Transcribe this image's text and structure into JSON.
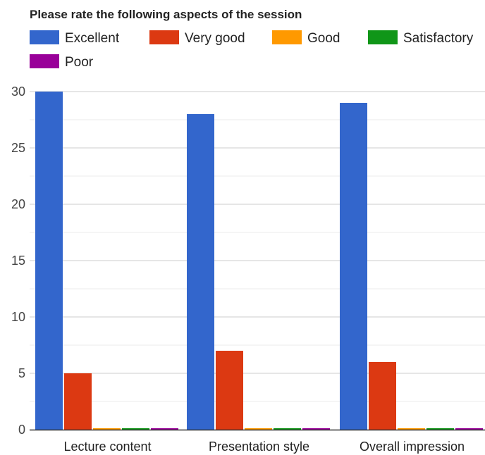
{
  "chart_data": {
    "type": "bar",
    "title": "Please rate the following aspects of the session",
    "xlabel": "",
    "ylabel": "",
    "categories": [
      "Lecture content",
      "Presentation style",
      "Overall impression"
    ],
    "series": [
      {
        "name": "Excellent",
        "color": "#3366cc",
        "values": [
          30,
          28,
          29
        ]
      },
      {
        "name": "Very good",
        "color": "#dc3912",
        "values": [
          5,
          7,
          6
        ]
      },
      {
        "name": "Good",
        "color": "#ff9900",
        "values": [
          0,
          0,
          0
        ]
      },
      {
        "name": "Satisfactory",
        "color": "#109618",
        "values": [
          0,
          0,
          0
        ]
      },
      {
        "name": "Poor",
        "color": "#990099",
        "values": [
          0,
          0,
          0
        ]
      }
    ],
    "ylim": [
      0,
      30
    ],
    "yticks": [
      "0",
      "5",
      "10",
      "15",
      "20",
      "25",
      "30"
    ],
    "grid": true,
    "minor_grid": true,
    "legend": "top"
  }
}
